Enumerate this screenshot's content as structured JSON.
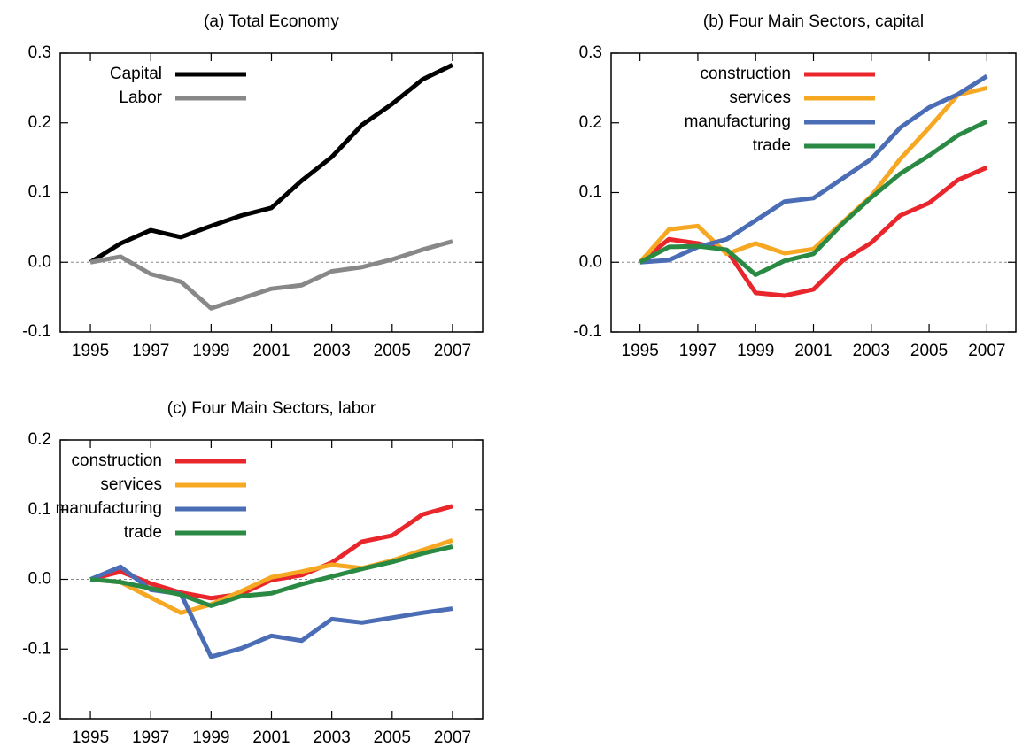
{
  "chart_data": [
    {
      "type": "line",
      "title": "(a) Total Economy",
      "x": [
        1995,
        1996,
        1997,
        1998,
        1999,
        2000,
        2001,
        2002,
        2003,
        2004,
        2005,
        2006,
        2007
      ],
      "series": [
        {
          "name": "Capital",
          "color": "#000000",
          "values": [
            0,
            0.027,
            0.046,
            0.036,
            0.052,
            0.067,
            0.078,
            0.117,
            0.151,
            0.197,
            0.227,
            0.262,
            0.283
          ]
        },
        {
          "name": "Labor",
          "color": "#888888",
          "values": [
            0,
            0.008,
            -0.017,
            -0.028,
            -0.066,
            -0.052,
            -0.038,
            -0.033,
            -0.013,
            -0.007,
            0.004,
            0.018,
            0.03
          ]
        }
      ],
      "xlim": [
        1994,
        2008
      ],
      "xticks": [
        1995,
        1997,
        1999,
        2001,
        2003,
        2005,
        2007
      ],
      "ylim": [
        -0.1,
        0.3
      ],
      "yticks": [
        -0.1,
        {
          "value": 0,
          "label": "0.0"
        },
        0.1,
        0.2,
        0.3
      ],
      "zero_line": true,
      "legend": "upper left"
    },
    {
      "type": "line",
      "title": "(b) Four Main Sectors, capital",
      "x": [
        1995,
        1996,
        1997,
        1998,
        1999,
        2000,
        2001,
        2002,
        2003,
        2004,
        2005,
        2006,
        2007
      ],
      "series": [
        {
          "name": "construction",
          "color": "#e8262b",
          "values": [
            0,
            0.033,
            0.027,
            0.017,
            -0.044,
            -0.048,
            -0.039,
            0.002,
            0.028,
            0.067,
            0.085,
            0.118,
            0.136
          ]
        },
        {
          "name": "services",
          "color": "#f7a823",
          "values": [
            0,
            0.047,
            0.052,
            0.012,
            0.027,
            0.013,
            0.019,
            0.057,
            0.095,
            0.148,
            0.193,
            0.24,
            0.25
          ]
        },
        {
          "name": "manufacturing",
          "color": "#4a6db5",
          "values": [
            0,
            0.003,
            0.022,
            0.033,
            0.06,
            0.087,
            0.092,
            0.12,
            0.148,
            0.193,
            0.222,
            0.241,
            0.267
          ]
        },
        {
          "name": "trade",
          "color": "#2a8a43",
          "values": [
            0,
            0.022,
            0.023,
            0.018,
            -0.018,
            0.002,
            0.012,
            0.055,
            0.093,
            0.127,
            0.153,
            0.182,
            0.202
          ]
        }
      ],
      "xlim": [
        1994,
        2008
      ],
      "xticks": [
        1995,
        1997,
        1999,
        2001,
        2003,
        2005,
        2007
      ],
      "ylim": [
        -0.1,
        0.3
      ],
      "yticks": [
        -0.1,
        {
          "value": 0,
          "label": "0.0"
        },
        0.1,
        0.2,
        0.3
      ],
      "zero_line": true,
      "legend": "upper left"
    },
    {
      "type": "line",
      "title": "(c) Four Main Sectors, labor",
      "x": [
        1995,
        1996,
        1997,
        1998,
        1999,
        2000,
        2001,
        2002,
        2003,
        2004,
        2005,
        2006,
        2007
      ],
      "series": [
        {
          "name": "construction",
          "color": "#e8262b",
          "values": [
            0,
            0.011,
            -0.006,
            -0.019,
            -0.027,
            -0.021,
            -0.001,
            0.006,
            0.024,
            0.054,
            0.063,
            0.093,
            0.105
          ]
        },
        {
          "name": "services",
          "color": "#f7a823",
          "values": [
            0,
            -0.004,
            -0.026,
            -0.048,
            -0.036,
            -0.017,
            0.003,
            0.011,
            0.021,
            0.016,
            0.027,
            0.042,
            0.056
          ]
        },
        {
          "name": "manufacturing",
          "color": "#4a6db5",
          "values": [
            0,
            0.018,
            -0.015,
            -0.021,
            -0.111,
            -0.099,
            -0.081,
            -0.088,
            -0.057,
            -0.062,
            -0.055,
            -0.048,
            -0.042
          ]
        },
        {
          "name": "trade",
          "color": "#2a8a43",
          "values": [
            0,
            -0.004,
            -0.013,
            -0.022,
            -0.038,
            -0.024,
            -0.02,
            -0.007,
            0.004,
            0.015,
            0.025,
            0.037,
            0.047
          ]
        }
      ],
      "xlim": [
        1994,
        2008
      ],
      "xticks": [
        1995,
        1997,
        1999,
        2001,
        2003,
        2005,
        2007
      ],
      "ylim": [
        -0.2,
        0.2
      ],
      "yticks": [
        -0.2,
        -0.1,
        {
          "value": 0,
          "label": "0.0"
        },
        0.1,
        0.2
      ],
      "zero_line": true,
      "legend": "upper left"
    }
  ]
}
